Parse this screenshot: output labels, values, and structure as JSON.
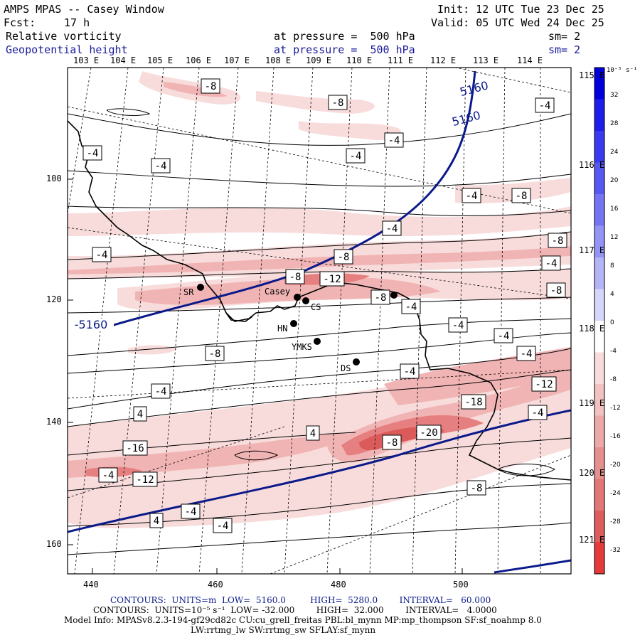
{
  "header": {
    "title": "AMPS MPAS -- Casey Window",
    "forecast_label": "Fcst:",
    "forecast_value": "17 h",
    "init": "Init: 12 UTC Tue 23 Dec 25",
    "valid": "Valid: 05 UTC Wed 24 Dec 25",
    "field1_name": "Relative vorticity",
    "field1_level": "at pressure =  500 hPa",
    "field1_sm": "sm= 2",
    "field2_name": "Geopotential height",
    "field2_level": "at pressure =  500 hPa",
    "field2_sm": "sm= 2"
  },
  "top_longitudes": [
    "103 E",
    "104 E",
    "105 E",
    "106 E",
    "107 E",
    "108 E",
    "109 E",
    "110 E",
    "111 E",
    "112 E",
    "113 E",
    "114 E"
  ],
  "right_longitudes": [
    "115 E",
    "116 E",
    "117 E",
    "118 E",
    "119 E",
    "120 E",
    "121 E"
  ],
  "y_axis": [
    "100",
    "120",
    "140",
    "160"
  ],
  "x_axis": [
    "440",
    "460",
    "480",
    "500"
  ],
  "stations": [
    "SR",
    "Casey",
    "CS",
    "HN",
    "YMKS",
    "DS"
  ],
  "vorticity_labels": [
    "-8",
    "-8",
    "-4",
    "-4",
    "-4",
    "-4",
    "-4",
    "-4",
    "-8",
    "-4",
    "-8",
    "-4",
    "-8",
    "-4",
    "-8",
    "-12",
    "-8",
    "-8",
    "-4",
    "-4",
    "-4",
    "-8",
    "-4",
    "-4",
    "-4",
    "-12",
    "-18",
    "-4",
    "4",
    "4",
    "-8",
    "-20",
    "-16",
    "-4",
    "-12",
    "-8",
    "-4",
    "-4",
    "4"
  ],
  "height_labels": [
    "5160",
    "5160",
    "5160"
  ],
  "colorbar": {
    "units_label": "10⁻⁵ s⁻¹",
    "ticks": [
      "32",
      "28",
      "24",
      "20",
      "16",
      "12",
      "8",
      "4",
      "0",
      "-4",
      "-8",
      "-12",
      "-16",
      "-20",
      "-24",
      "-28",
      "-32"
    ]
  },
  "footer": {
    "line1": "CONTOURS:  UNITS=m  LOW=  5160.0         HIGH=  5280.0        INTERVAL=   60.000",
    "line2": "CONTOURS:  UNITS=10⁻⁵ s⁻¹  LOW= -32.000        HIGH=  32.000        INTERVAL=   4.0000",
    "line3": "Model Info: MPASv8.2.3-194-gf29cd82c CU:cu_grell_freitas PBL:bl_mynn MP:mp_thompson SF:sf_noahmp 8.0",
    "line4": "LW:rrtmg_lw SW:rrtmg_sw SFLAY:sf_mynn"
  },
  "colors": {
    "height_contour": "#0b1a8a",
    "light_pink": "#f8dcdc",
    "mid_pink": "#f1b4b4",
    "deep_pink": "#e68080",
    "red": "#db5a5a"
  }
}
